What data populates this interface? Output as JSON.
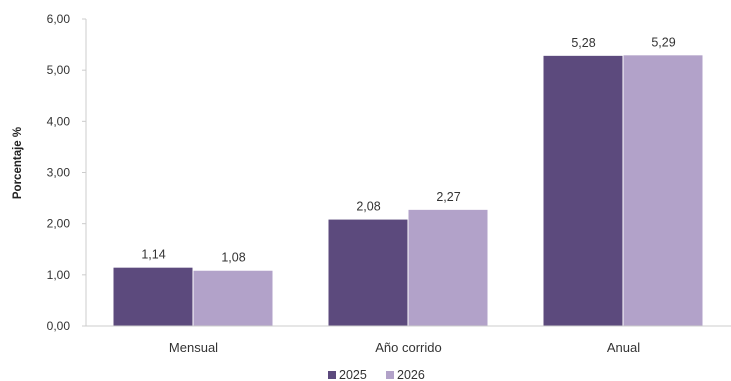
{
  "chart_data": {
    "type": "bar",
    "categories": [
      "Mensual",
      "Año corrido",
      "Anual"
    ],
    "series": [
      {
        "name": "2025",
        "values": [
          1.14,
          2.08,
          5.28
        ],
        "labels": [
          "1,14",
          "2,08",
          "5,28"
        ],
        "color": "#5c4a7d"
      },
      {
        "name": "2026",
        "values": [
          1.08,
          2.27,
          5.29
        ],
        "labels": [
          "1,08",
          "2,27",
          "5,29"
        ],
        "color": "#b2a2c9"
      }
    ],
    "ylabel": "Porcentaje %",
    "ylim": [
      0,
      6
    ],
    "yticks": [
      0,
      1,
      2,
      3,
      4,
      5,
      6
    ],
    "ytick_labels": [
      "0,00",
      "1,00",
      "2,00",
      "3,00",
      "4,00",
      "5,00",
      "6,00"
    ],
    "grid": false,
    "legend_position": "bottom"
  }
}
